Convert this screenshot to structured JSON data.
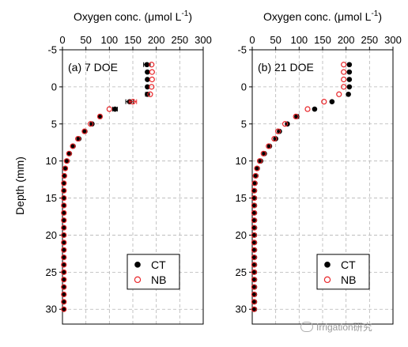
{
  "figure": {
    "ylabel": "Depth (mm)",
    "watermark": "Irrigation研究"
  },
  "chart_data": [
    {
      "type": "scatter",
      "panel_label": "(a) 7 DOE",
      "xlabel": "Oxygen conc. (μmol L",
      "xlabel_sup": "-1",
      "xlabel_close": ")",
      "ylabel": "Depth (mm)",
      "xlim": [
        0,
        300
      ],
      "ylim": [
        -5,
        32
      ],
      "y_inverted": true,
      "x_axis_position": "top",
      "xticks": [
        0,
        50,
        100,
        150,
        200,
        250,
        300
      ],
      "yticks": [
        -5,
        0,
        5,
        10,
        15,
        20,
        25,
        30
      ],
      "grid": true,
      "legend_position": "bottom-right",
      "series": [
        {
          "name": "CT",
          "marker": "filled-circle",
          "color": "#000000",
          "points": [
            {
              "x": 180,
              "y": -3,
              "err": 7
            },
            {
              "x": 181,
              "y": -2,
              "err": 0
            },
            {
              "x": 181,
              "y": -1,
              "err": 0
            },
            {
              "x": 181,
              "y": 0,
              "err": 0
            },
            {
              "x": 181,
              "y": 1,
              "err": 4
            },
            {
              "x": 143,
              "y": 2,
              "err": 8
            },
            {
              "x": 112,
              "y": 3,
              "err": 5
            },
            {
              "x": 80,
              "y": 4,
              "err": 3
            },
            {
              "x": 63,
              "y": 5,
              "err": 0
            },
            {
              "x": 48,
              "y": 6,
              "err": 0
            },
            {
              "x": 35,
              "y": 7,
              "err": 0
            },
            {
              "x": 23,
              "y": 8,
              "err": 0
            },
            {
              "x": 15,
              "y": 9,
              "err": 0
            },
            {
              "x": 10,
              "y": 10,
              "err": 0
            },
            {
              "x": 6,
              "y": 11,
              "err": 0
            },
            {
              "x": 4,
              "y": 12,
              "err": 0
            },
            {
              "x": 3,
              "y": 13,
              "err": 0
            },
            {
              "x": 3,
              "y": 14,
              "err": 0
            },
            {
              "x": 3,
              "y": 15,
              "err": 0
            },
            {
              "x": 3,
              "y": 16,
              "err": 0
            },
            {
              "x": 3,
              "y": 17,
              "err": 0
            },
            {
              "x": 3,
              "y": 18,
              "err": 0
            },
            {
              "x": 3,
              "y": 19,
              "err": 0
            },
            {
              "x": 3,
              "y": 20,
              "err": 0
            },
            {
              "x": 3,
              "y": 21,
              "err": 0
            },
            {
              "x": 3,
              "y": 22,
              "err": 0
            },
            {
              "x": 3,
              "y": 23,
              "err": 0
            },
            {
              "x": 3,
              "y": 24,
              "err": 0
            },
            {
              "x": 3,
              "y": 25,
              "err": 0
            },
            {
              "x": 3,
              "y": 26,
              "err": 0
            },
            {
              "x": 3,
              "y": 27,
              "err": 0
            },
            {
              "x": 3,
              "y": 28,
              "err": 0
            },
            {
              "x": 3,
              "y": 29,
              "err": 0
            },
            {
              "x": 3,
              "y": 30,
              "err": 0
            }
          ]
        },
        {
          "name": "NB",
          "marker": "open-circle",
          "color": "#e8262a",
          "points": [
            {
              "x": 190,
              "y": -3,
              "err": 0
            },
            {
              "x": 191,
              "y": -2,
              "err": 0
            },
            {
              "x": 191,
              "y": -1,
              "err": 0
            },
            {
              "x": 190,
              "y": 0,
              "err": 0
            },
            {
              "x": 187,
              "y": 1,
              "err": 0
            },
            {
              "x": 150,
              "y": 2,
              "err": 8
            },
            {
              "x": 100,
              "y": 3,
              "err": 0
            },
            {
              "x": 80,
              "y": 4,
              "err": 0
            },
            {
              "x": 60,
              "y": 5,
              "err": 0
            },
            {
              "x": 47,
              "y": 6,
              "err": 0
            },
            {
              "x": 33,
              "y": 7,
              "err": 0
            },
            {
              "x": 22,
              "y": 8,
              "err": 0
            },
            {
              "x": 14,
              "y": 9,
              "err": 0
            },
            {
              "x": 9,
              "y": 10,
              "err": 0
            },
            {
              "x": 6,
              "y": 11,
              "err": 0
            },
            {
              "x": 4,
              "y": 12,
              "err": 0
            },
            {
              "x": 3,
              "y": 13,
              "err": 0
            },
            {
              "x": 3,
              "y": 14,
              "err": 0
            },
            {
              "x": 3,
              "y": 15,
              "err": 0
            },
            {
              "x": 3,
              "y": 16,
              "err": 0
            },
            {
              "x": 3,
              "y": 17,
              "err": 0
            },
            {
              "x": 3,
              "y": 18,
              "err": 0
            },
            {
              "x": 3,
              "y": 19,
              "err": 0
            },
            {
              "x": 3,
              "y": 20,
              "err": 0
            },
            {
              "x": 3,
              "y": 21,
              "err": 0
            },
            {
              "x": 3,
              "y": 22,
              "err": 0
            },
            {
              "x": 3,
              "y": 23,
              "err": 0
            },
            {
              "x": 3,
              "y": 24,
              "err": 0
            },
            {
              "x": 3,
              "y": 25,
              "err": 0
            },
            {
              "x": 3,
              "y": 26,
              "err": 0
            },
            {
              "x": 3,
              "y": 27,
              "err": 0
            },
            {
              "x": 3,
              "y": 28,
              "err": 0
            },
            {
              "x": 3,
              "y": 29,
              "err": 0
            },
            {
              "x": 3,
              "y": 30,
              "err": 0
            }
          ]
        }
      ]
    },
    {
      "type": "scatter",
      "panel_label": "(b) 21 DOE",
      "xlabel": "Oxygen conc. (μmol L",
      "xlabel_sup": "-1",
      "xlabel_close": ")",
      "xlim": [
        0,
        300
      ],
      "ylim": [
        -5,
        32
      ],
      "y_inverted": true,
      "x_axis_position": "top",
      "xticks": [
        0,
        50,
        100,
        150,
        200,
        250,
        300
      ],
      "yticks": [
        -5,
        0,
        5,
        10,
        15,
        20,
        25,
        30
      ],
      "grid": true,
      "legend_position": "bottom-right",
      "series": [
        {
          "name": "CT",
          "marker": "filled-circle",
          "color": "#000000",
          "points": [
            {
              "x": 207,
              "y": -3,
              "err": 0
            },
            {
              "x": 207,
              "y": -2,
              "err": 0
            },
            {
              "x": 207,
              "y": -1,
              "err": 0
            },
            {
              "x": 207,
              "y": 0,
              "err": 0
            },
            {
              "x": 205,
              "y": 1,
              "err": 0
            },
            {
              "x": 170,
              "y": 2,
              "err": 0
            },
            {
              "x": 133,
              "y": 3,
              "err": 0
            },
            {
              "x": 95,
              "y": 4,
              "err": 4
            },
            {
              "x": 75,
              "y": 5,
              "err": 0
            },
            {
              "x": 58,
              "y": 6,
              "err": 0
            },
            {
              "x": 50,
              "y": 7,
              "err": 0
            },
            {
              "x": 37,
              "y": 8,
              "err": 0
            },
            {
              "x": 26,
              "y": 9,
              "err": 0
            },
            {
              "x": 18,
              "y": 10,
              "err": 0
            },
            {
              "x": 11,
              "y": 11,
              "err": 0
            },
            {
              "x": 8,
              "y": 12,
              "err": 0
            },
            {
              "x": 6,
              "y": 13,
              "err": 0
            },
            {
              "x": 5,
              "y": 14,
              "err": 0
            },
            {
              "x": 5,
              "y": 15,
              "err": 0
            },
            {
              "x": 5,
              "y": 16,
              "err": 0
            },
            {
              "x": 5,
              "y": 17,
              "err": 0
            },
            {
              "x": 5,
              "y": 18,
              "err": 0
            },
            {
              "x": 5,
              "y": 19,
              "err": 0
            },
            {
              "x": 5,
              "y": 20,
              "err": 0
            },
            {
              "x": 5,
              "y": 21,
              "err": 0
            },
            {
              "x": 5,
              "y": 22,
              "err": 0
            },
            {
              "x": 5,
              "y": 23,
              "err": 0
            },
            {
              "x": 5,
              "y": 24,
              "err": 0
            },
            {
              "x": 5,
              "y": 25,
              "err": 0
            },
            {
              "x": 5,
              "y": 26,
              "err": 0
            },
            {
              "x": 5,
              "y": 27,
              "err": 0
            },
            {
              "x": 5,
              "y": 28,
              "err": 0
            },
            {
              "x": 5,
              "y": 29,
              "err": 0
            },
            {
              "x": 5,
              "y": 30,
              "err": 0
            }
          ]
        },
        {
          "name": "NB",
          "marker": "open-circle",
          "color": "#e8262a",
          "points": [
            {
              "x": 195,
              "y": -3,
              "err": 0
            },
            {
              "x": 195,
              "y": -2,
              "err": 0
            },
            {
              "x": 195,
              "y": -1,
              "err": 0
            },
            {
              "x": 195,
              "y": 0,
              "err": 0
            },
            {
              "x": 185,
              "y": 1,
              "err": 0
            },
            {
              "x": 153,
              "y": 2,
              "err": 0
            },
            {
              "x": 118,
              "y": 3,
              "err": 0
            },
            {
              "x": 93,
              "y": 4,
              "err": 0
            },
            {
              "x": 70,
              "y": 5,
              "err": 0
            },
            {
              "x": 55,
              "y": 6,
              "err": 0
            },
            {
              "x": 47,
              "y": 7,
              "err": 0
            },
            {
              "x": 35,
              "y": 8,
              "err": 0
            },
            {
              "x": 24,
              "y": 9,
              "err": 0
            },
            {
              "x": 16,
              "y": 10,
              "err": 0
            },
            {
              "x": 10,
              "y": 11,
              "err": 0
            },
            {
              "x": 7,
              "y": 12,
              "err": 0
            },
            {
              "x": 5,
              "y": 13,
              "err": 0
            },
            {
              "x": 4,
              "y": 14,
              "err": 0
            },
            {
              "x": 4,
              "y": 15,
              "err": 0
            },
            {
              "x": 4,
              "y": 16,
              "err": 0
            },
            {
              "x": 4,
              "y": 17,
              "err": 0
            },
            {
              "x": 4,
              "y": 18,
              "err": 0
            },
            {
              "x": 4,
              "y": 19,
              "err": 0
            },
            {
              "x": 4,
              "y": 20,
              "err": 0
            },
            {
              "x": 4,
              "y": 21,
              "err": 0
            },
            {
              "x": 4,
              "y": 22,
              "err": 0
            },
            {
              "x": 4,
              "y": 23,
              "err": 0
            },
            {
              "x": 4,
              "y": 24,
              "err": 0
            },
            {
              "x": 4,
              "y": 25,
              "err": 0
            },
            {
              "x": 4,
              "y": 26,
              "err": 0
            },
            {
              "x": 4,
              "y": 27,
              "err": 0
            },
            {
              "x": 4,
              "y": 28,
              "err": 0
            },
            {
              "x": 4,
              "y": 29,
              "err": 0
            },
            {
              "x": 4,
              "y": 30,
              "err": 0
            }
          ]
        }
      ]
    }
  ]
}
